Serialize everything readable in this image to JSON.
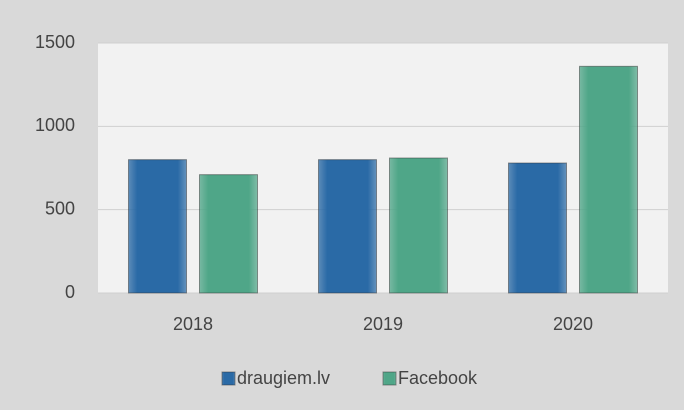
{
  "chart_data": {
    "type": "bar",
    "categories": [
      "2018",
      "2019",
      "2020"
    ],
    "series": [
      {
        "name": "draugiem.lv",
        "color": "#2a6aa6",
        "values": [
          800,
          800,
          780
        ]
      },
      {
        "name": "Facebook",
        "color": "#4fa688",
        "values": [
          710,
          810,
          1360
        ]
      }
    ],
    "ylim": [
      0,
      1500
    ],
    "yticks": [
      0,
      500,
      1000,
      1500
    ],
    "grid": true,
    "legend": "bottom"
  }
}
